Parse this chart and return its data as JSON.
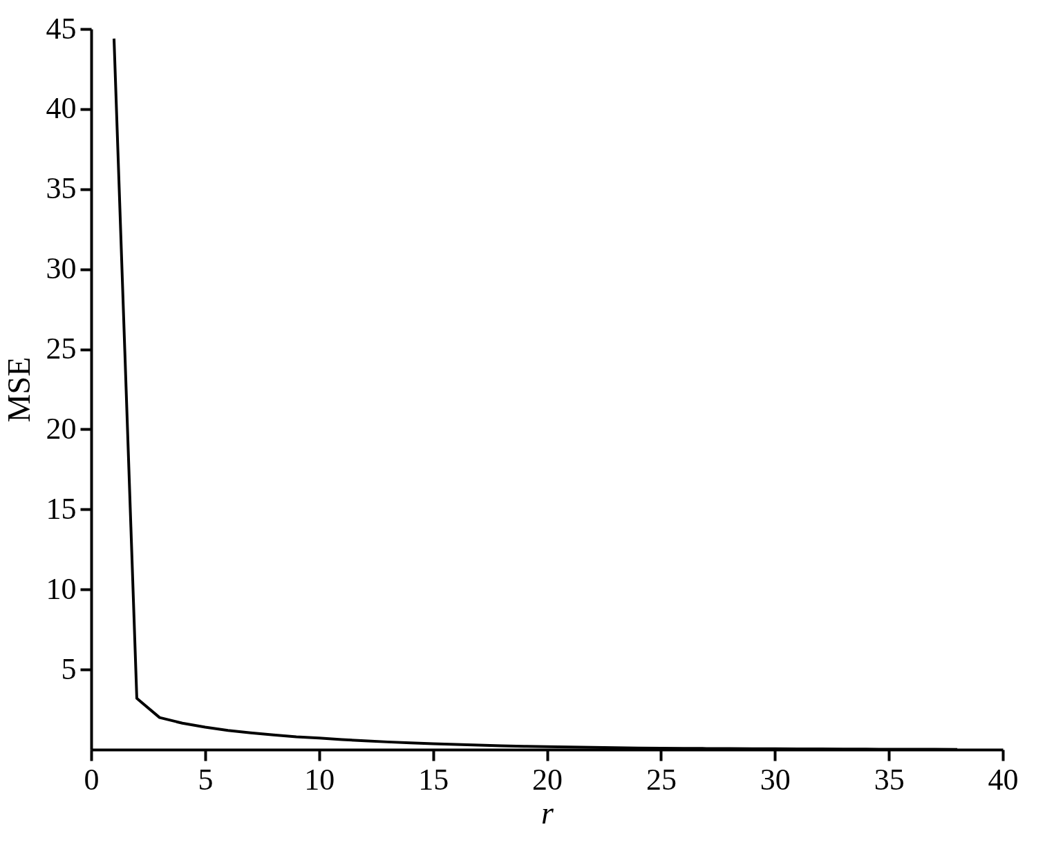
{
  "chart_data": {
    "type": "line",
    "xlabel": "r",
    "ylabel": "MSE",
    "x": [
      1,
      2,
      3,
      4,
      5,
      6,
      7,
      8,
      9,
      10,
      11,
      12,
      13,
      14,
      15,
      16,
      17,
      18,
      19,
      20,
      21,
      22,
      23,
      24,
      25,
      26,
      27,
      28,
      29,
      30,
      31,
      32,
      33,
      34,
      35,
      36,
      37,
      38
    ],
    "series": [
      {
        "color": "#000000",
        "values": [
          44.4,
          3.2,
          2.0,
          1.65,
          1.4,
          1.2,
          1.05,
          0.92,
          0.8,
          0.72,
          0.63,
          0.55,
          0.48,
          0.42,
          0.37,
          0.32,
          0.28,
          0.24,
          0.21,
          0.18,
          0.16,
          0.14,
          0.12,
          0.1,
          0.09,
          0.08,
          0.07,
          0.06,
          0.05,
          0.05,
          0.04,
          0.04,
          0.03,
          0.03,
          0.02,
          0.02,
          0.02,
          0.01
        ]
      }
    ],
    "xlim": [
      0,
      40
    ],
    "xticks": [
      0,
      5,
      10,
      15,
      20,
      25,
      30,
      35,
      40
    ],
    "ylim": [
      0,
      45
    ],
    "yticks": [
      5,
      10,
      15,
      20,
      25,
      30,
      35,
      40,
      45
    ],
    "grid": false,
    "marker": "none",
    "line_style": "solid"
  }
}
